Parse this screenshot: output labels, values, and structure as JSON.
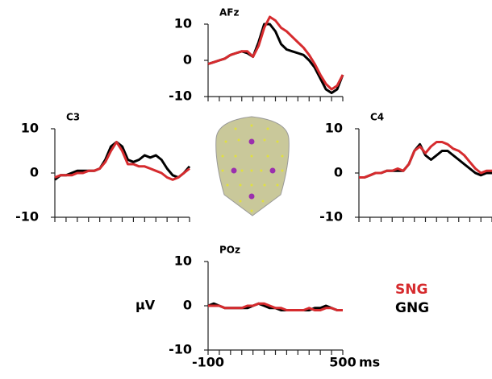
{
  "chart_data": [
    {
      "type": "line",
      "title": "AFz",
      "x": [
        -100,
        -75,
        -50,
        -25,
        0,
        25,
        50,
        75,
        100,
        125,
        150,
        175,
        200,
        225,
        250,
        275,
        300,
        325,
        350,
        375,
        400,
        425,
        450,
        475,
        500
      ],
      "series": [
        {
          "name": "SNG",
          "color": "#d62b2e",
          "values": [
            -1,
            -0.5,
            0,
            0.5,
            1.5,
            2,
            2.5,
            2.5,
            1,
            4,
            9,
            12,
            11,
            9,
            8,
            6.5,
            5,
            3.5,
            1.5,
            -1,
            -4,
            -6.5,
            -8,
            -7,
            -4
          ]
        },
        {
          "name": "GNG",
          "color": "#000000",
          "values": [
            -1,
            -0.5,
            0,
            0.5,
            1.5,
            2,
            2.5,
            2,
            1,
            5,
            10,
            10,
            8,
            4.5,
            3,
            2.5,
            2,
            1.5,
            0,
            -2,
            -5,
            -8,
            -9,
            -8,
            -4
          ]
        }
      ],
      "xlim": [
        -100,
        500
      ],
      "minor_xticks": [
        -100,
        -50,
        0,
        50,
        100,
        150,
        200,
        250,
        300,
        350,
        400,
        450,
        500
      ],
      "ylim": [
        -10,
        10
      ],
      "yticks": [
        -10,
        0,
        10
      ]
    },
    {
      "type": "line",
      "title": "C3",
      "x": [
        -100,
        -75,
        -50,
        -25,
        0,
        25,
        50,
        75,
        100,
        125,
        150,
        175,
        200,
        225,
        250,
        275,
        300,
        325,
        350,
        375,
        400,
        425,
        450,
        475,
        500
      ],
      "series": [
        {
          "name": "SNG",
          "color": "#d62b2e",
          "values": [
            -1,
            -0.5,
            -0.5,
            -0.5,
            0,
            0,
            0.5,
            0.5,
            1,
            2.5,
            5,
            7,
            5,
            2,
            2,
            1.5,
            1.5,
            1,
            0.5,
            0,
            -1,
            -1.5,
            -1,
            0,
            1
          ]
        },
        {
          "name": "GNG",
          "color": "#000000",
          "values": [
            -1.5,
            -0.5,
            -0.5,
            0,
            0.5,
            0.5,
            0.5,
            0.5,
            1,
            3,
            6,
            7,
            6,
            3,
            2.5,
            3,
            4,
            3.5,
            4,
            3,
            1,
            -0.5,
            -1,
            0,
            1.5
          ]
        }
      ],
      "xlim": [
        -100,
        500
      ],
      "minor_xticks": [
        -100,
        -50,
        0,
        50,
        100,
        150,
        200,
        250,
        300,
        350,
        400,
        450,
        500
      ],
      "ylim": [
        -10,
        10
      ],
      "yticks": [
        -10,
        0,
        10
      ]
    },
    {
      "type": "line",
      "title": "C4",
      "x": [
        -100,
        -75,
        -50,
        -25,
        0,
        25,
        50,
        75,
        100,
        125,
        150,
        175,
        200,
        225,
        250,
        275,
        300,
        325,
        350,
        375,
        400,
        425,
        450,
        475,
        500
      ],
      "series": [
        {
          "name": "SNG",
          "color": "#d62b2e",
          "values": [
            -1,
            -1,
            -0.5,
            0,
            0,
            0.5,
            0.5,
            1,
            0.5,
            2,
            5,
            6,
            4.5,
            6,
            7,
            7,
            6.5,
            5.5,
            5,
            4,
            2.5,
            1,
            0,
            0.5,
            0.5
          ]
        },
        {
          "name": "GNG",
          "color": "#000000",
          "values": [
            -1,
            -1,
            -0.5,
            0,
            0,
            0.5,
            0.5,
            0.5,
            0.5,
            2,
            5,
            6.5,
            4,
            3,
            4,
            5,
            5,
            4,
            3,
            2,
            1,
            0,
            -0.5,
            0,
            0
          ]
        }
      ],
      "xlim": [
        -100,
        500
      ],
      "minor_xticks": [
        -100,
        -50,
        0,
        50,
        100,
        150,
        200,
        250,
        300,
        350,
        400,
        450,
        500
      ],
      "ylim": [
        -10,
        10
      ],
      "yticks": [
        -10,
        0,
        10
      ]
    },
    {
      "type": "line",
      "title": "POz",
      "x": [
        -100,
        -75,
        -50,
        -25,
        0,
        25,
        50,
        75,
        100,
        125,
        150,
        175,
        200,
        225,
        250,
        275,
        300,
        325,
        350,
        375,
        400,
        425,
        450,
        475,
        500
      ],
      "series": [
        {
          "name": "SNG",
          "color": "#d62b2e",
          "values": [
            0,
            0,
            0,
            -0.5,
            -0.5,
            -0.5,
            -0.5,
            0,
            0,
            0.5,
            0.5,
            0,
            -0.5,
            -0.5,
            -1,
            -1,
            -1,
            -1,
            -0.5,
            -1,
            -1,
            -0.5,
            -0.5,
            -1,
            -1
          ]
        },
        {
          "name": "GNG",
          "color": "#000000",
          "values": [
            0,
            0.5,
            0,
            -0.5,
            -0.5,
            -0.5,
            -0.5,
            -0.5,
            0,
            0.5,
            0,
            -0.5,
            -0.5,
            -1,
            -1,
            -1,
            -1,
            -1,
            -1,
            -0.5,
            -0.5,
            0,
            -0.5,
            -1,
            -1
          ]
        }
      ],
      "xlim": [
        -100,
        500
      ],
      "xticks": [
        -100,
        500
      ],
      "minor_xticks": [
        -100,
        -50,
        0,
        50,
        100,
        150,
        200,
        250,
        300,
        350,
        400,
        450,
        500
      ],
      "xlabel": "ms",
      "ylabel": "µV",
      "ylim": [
        -10,
        10
      ],
      "yticks": [
        -10,
        0,
        10
      ],
      "legend": true
    }
  ]
}
